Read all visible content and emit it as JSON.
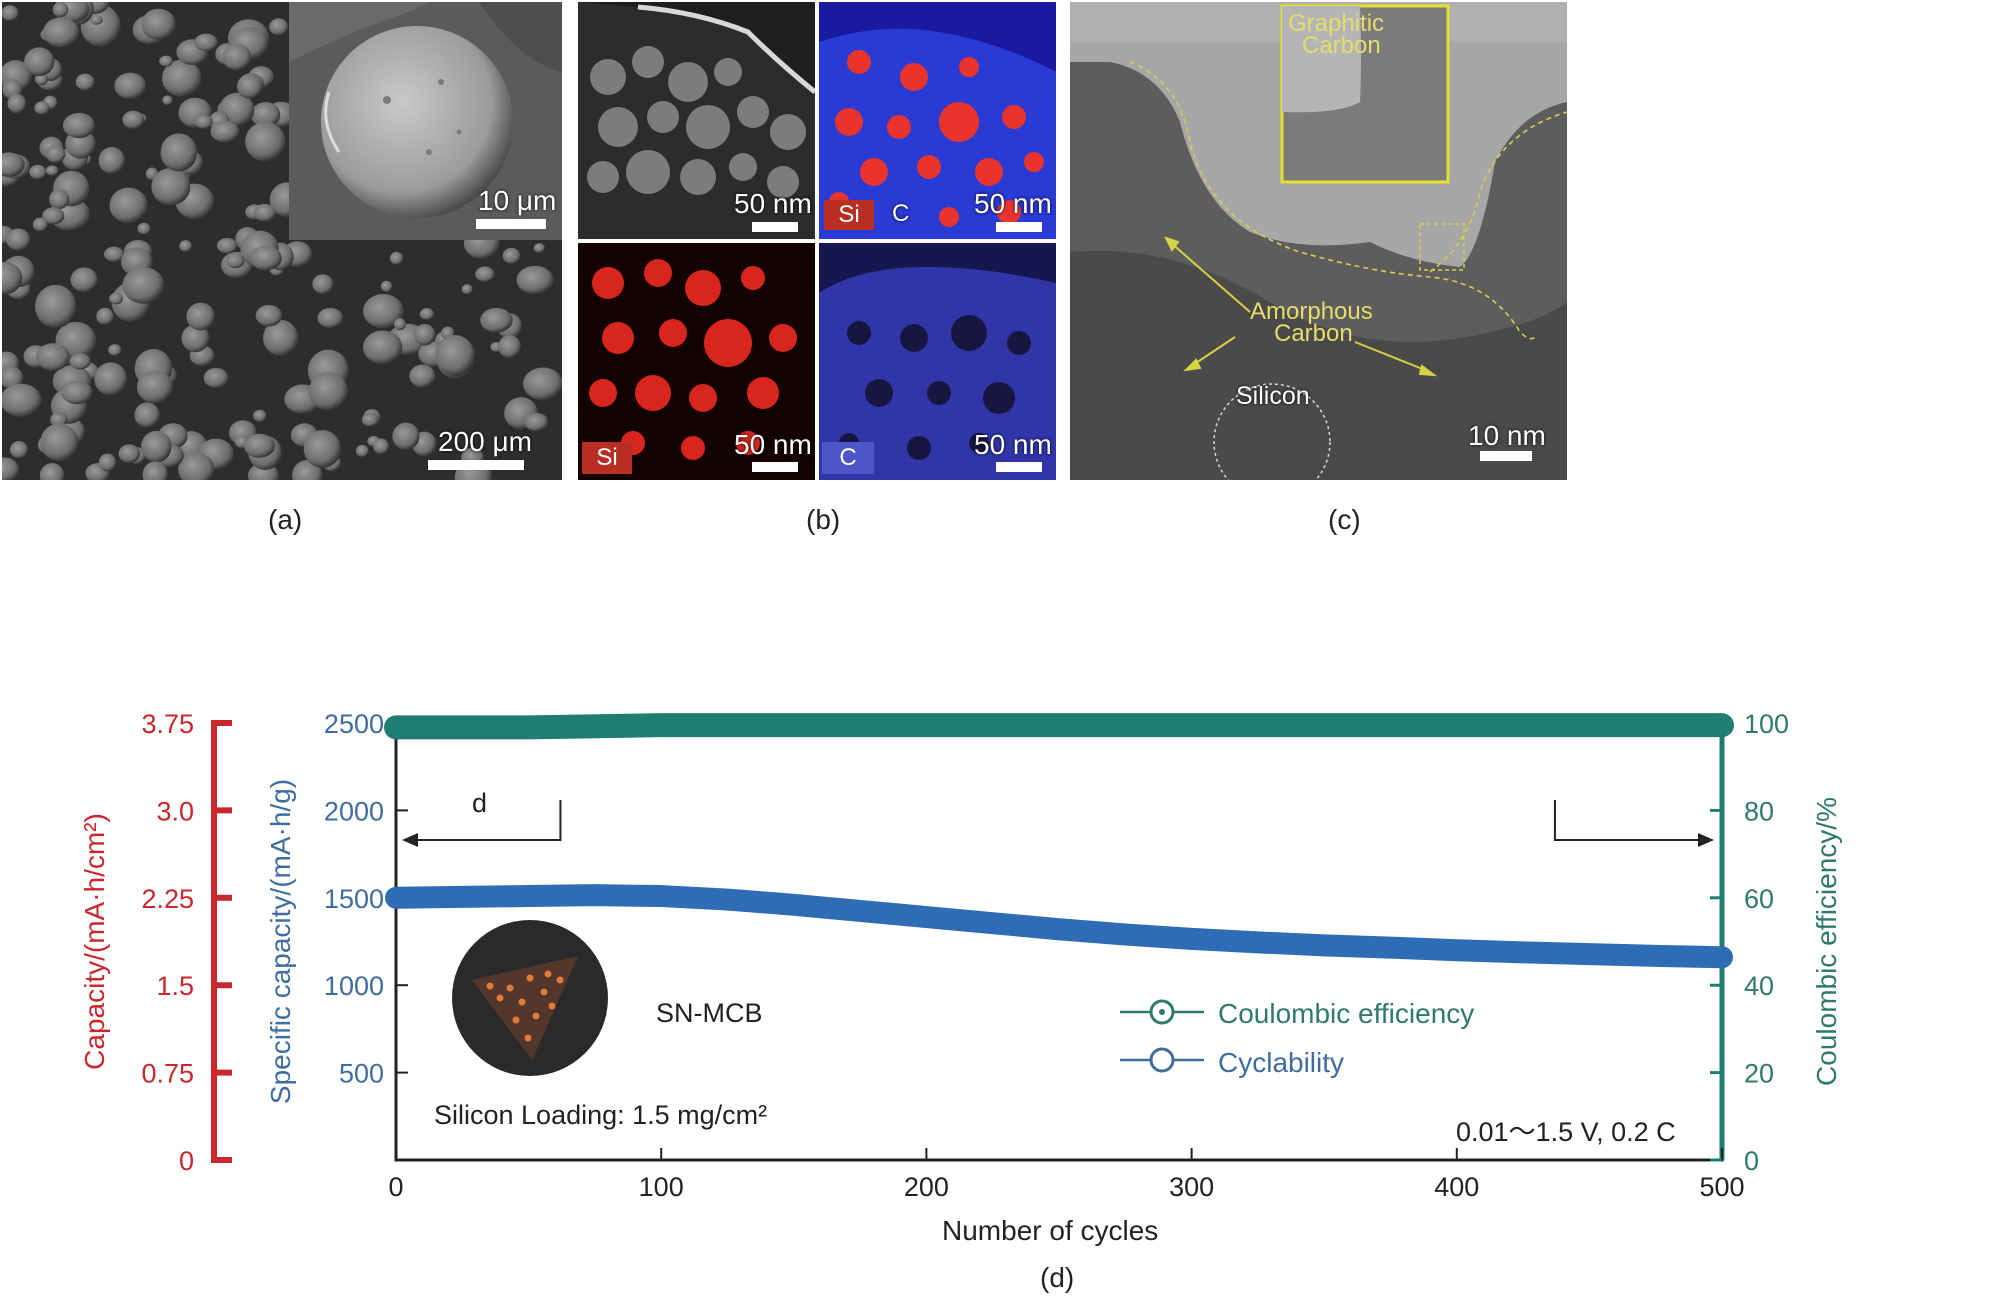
{
  "panel_a": {
    "inset_scale": "10 μm",
    "main_scale": "200 μm",
    "caption": "(a)"
  },
  "panel_b": {
    "scale_1": "50 nm",
    "scale_2": "50 nm",
    "scale_3": "50 nm",
    "scale_4": "50 nm",
    "tag_si_top": "Si",
    "tag_c_top": "C",
    "tag_si_bottom": "Si",
    "tag_c_bottom": "C",
    "caption": "(b)"
  },
  "panel_c": {
    "graphitic_1": "Graphitic",
    "graphitic_2": "Carbon",
    "amorphous_1": "Amorphous",
    "amorphous_2": "Carbon",
    "silicon": "Silicon",
    "scale": "10 nm",
    "caption": "(c)"
  },
  "panel_d": {
    "caption": "(d)",
    "colors": {
      "red": "#c8282d",
      "blue": "#3f6e9e",
      "teal": "#2f7a6b",
      "dark_teal": "#1d7d70",
      "series_blue": "#2e6db5"
    }
  },
  "chart_data": {
    "type": "line",
    "xlabel": "Number of cycles",
    "ylabel": "Specific capacity/(mA·h/g)",
    "ylabel_left_outer": "Capacity/(mA·h/cm²)",
    "ylabel_right": "Coulombic efficiency/%",
    "xlim": [
      0,
      500
    ],
    "ylim": [
      0,
      2500
    ],
    "ylim_left_outer": [
      0,
      3.75
    ],
    "ylim_right": [
      0,
      100
    ],
    "xticks": [
      "0",
      "100",
      "200",
      "300",
      "400",
      "500"
    ],
    "yticks": [
      "500",
      "1000",
      "1500",
      "2000",
      "2500"
    ],
    "yticks_left_outer": [
      "0",
      "0.75",
      "1.5",
      "2.25",
      "3.0",
      "3.75"
    ],
    "yticks_right": [
      "0",
      "20",
      "40",
      "60",
      "80",
      "100"
    ],
    "legend": [
      {
        "label": "Coulombic efficiency"
      },
      {
        "label": "Cyclability"
      }
    ],
    "annotations": {
      "material": "SN-MCB",
      "loading": "Silicon Loading: 1.5 mg/cm²",
      "conditions": "0.01～1.5 V, 0.2 C",
      "arrow_label": "d"
    },
    "series": [
      {
        "name": "Coulombic efficiency",
        "axis": "right",
        "x": [
          0,
          50,
          100,
          150,
          200,
          250,
          300,
          350,
          400,
          450,
          500
        ],
        "y": [
          99,
          99,
          99.5,
          99.5,
          99.5,
          99.5,
          99.5,
          99.5,
          99.5,
          99.5,
          99.5
        ]
      },
      {
        "name": "Cyclability",
        "axis": "left",
        "x": [
          0,
          25,
          50,
          75,
          100,
          125,
          150,
          175,
          200,
          225,
          250,
          275,
          300,
          325,
          350,
          375,
          400,
          425,
          450,
          475,
          500
        ],
        "y": [
          1500,
          1505,
          1510,
          1515,
          1510,
          1490,
          1460,
          1425,
          1390,
          1355,
          1320,
          1290,
          1265,
          1245,
          1228,
          1215,
          1200,
          1188,
          1178,
          1168,
          1160
        ]
      }
    ]
  }
}
